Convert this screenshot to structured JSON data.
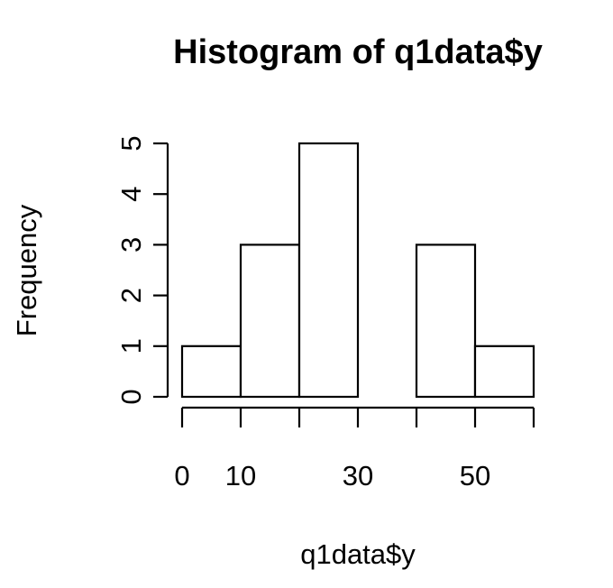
{
  "chart_data": {
    "type": "bar",
    "title": "Histogram of q1data$y",
    "xlabel": "q1data$y",
    "ylabel": "Frequency",
    "bins": [
      {
        "x0": 0,
        "x1": 10,
        "count": 1
      },
      {
        "x0": 10,
        "x1": 20,
        "count": 3
      },
      {
        "x0": 20,
        "x1": 30,
        "count": 5
      },
      {
        "x0": 30,
        "x1": 40,
        "count": 0
      },
      {
        "x0": 40,
        "x1": 50,
        "count": 3
      },
      {
        "x0": 50,
        "x1": 60,
        "count": 1
      }
    ],
    "xlim": [
      0,
      60
    ],
    "ylim": [
      0,
      5
    ],
    "x_ticks": [
      0,
      10,
      20,
      30,
      40,
      50,
      60
    ],
    "x_tick_labels": [
      "0",
      "10",
      "",
      "30",
      "",
      "50",
      ""
    ],
    "y_ticks": [
      0,
      1,
      2,
      3,
      4,
      5
    ],
    "y_tick_labels": [
      "0",
      "1",
      "2",
      "3",
      "4",
      "5"
    ],
    "bar_fill": "#ffffff",
    "bar_stroke": "#000000",
    "grid": false
  }
}
